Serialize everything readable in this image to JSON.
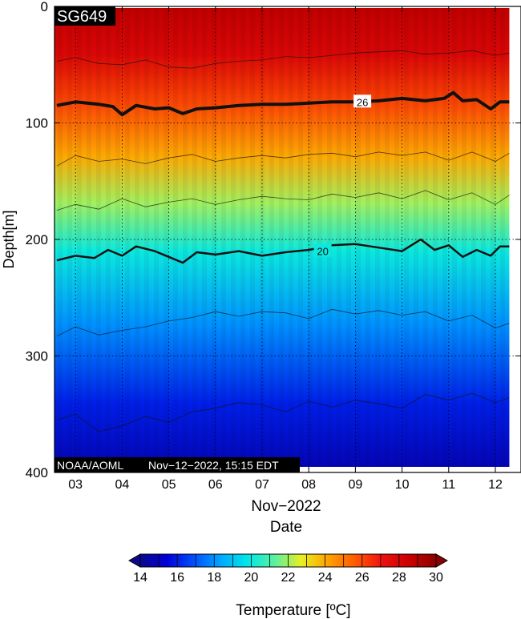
{
  "chart_data": {
    "type": "heatmap",
    "title_badge": "SG649",
    "footer_left": "NOAA/AOML",
    "footer_right": "Nov−12−2022, 15:15 EDT",
    "xlabel_month": "Nov−2022",
    "xlabel": "Date",
    "ylabel": "Depth[m]",
    "x_ticks": [
      "03",
      "04",
      "05",
      "06",
      "07",
      "08",
      "09",
      "10",
      "11",
      "12"
    ],
    "y_ticks": [
      0,
      100,
      200,
      300,
      400
    ],
    "xlim_days": [
      2.55,
      12.55
    ],
    "data_xlim_days": [
      2.55,
      12.3
    ],
    "ylim": [
      0,
      400
    ],
    "y_reversed": true,
    "grid": true,
    "colorbar": {
      "label": "Temperature [ºC]",
      "range": [
        14,
        30
      ],
      "ticks": [
        14,
        16,
        18,
        20,
        22,
        24,
        26,
        28,
        30
      ],
      "colors": [
        "#0a0a8a",
        "#0000d8",
        "#0050ff",
        "#00a8ff",
        "#00e8e8",
        "#5af0a0",
        "#e8f020",
        "#ffa000",
        "#ff5a00",
        "#ee1010",
        "#cc0000",
        "#8a0000"
      ]
    },
    "temperature_profile": [
      {
        "depth": 0,
        "temp": 28.8
      },
      {
        "depth": 40,
        "temp": 28.0
      },
      {
        "depth": 84,
        "temp": 26.0
      },
      {
        "depth": 130,
        "temp": 24.0
      },
      {
        "depth": 170,
        "temp": 22.0
      },
      {
        "depth": 212,
        "temp": 20.0
      },
      {
        "depth": 275,
        "temp": 18.0
      },
      {
        "depth": 345,
        "temp": 16.0
      },
      {
        "depth": 400,
        "temp": 14.8
      }
    ],
    "isotherms": [
      {
        "temp": 28,
        "label": "",
        "base_depth": 45,
        "bold": false,
        "points": [
          [
            2.6,
            47
          ],
          [
            3.0,
            44
          ],
          [
            3.5,
            49
          ],
          [
            4.0,
            50
          ],
          [
            4.5,
            46
          ],
          [
            5.0,
            52
          ],
          [
            5.5,
            53
          ],
          [
            6.0,
            49
          ],
          [
            6.5,
            47
          ],
          [
            7.0,
            46
          ],
          [
            7.5,
            43
          ],
          [
            8.0,
            44
          ],
          [
            8.5,
            42
          ],
          [
            9.0,
            40
          ],
          [
            9.5,
            39
          ],
          [
            10.0,
            38
          ],
          [
            10.5,
            41
          ],
          [
            11.0,
            40
          ],
          [
            11.5,
            38
          ],
          [
            12.0,
            42
          ],
          [
            12.3,
            40
          ]
        ]
      },
      {
        "temp": 26,
        "label": "26",
        "base_depth": 84,
        "bold": true,
        "points": [
          [
            2.6,
            85
          ],
          [
            3.0,
            82
          ],
          [
            3.5,
            84
          ],
          [
            3.8,
            86
          ],
          [
            4.0,
            93
          ],
          [
            4.3,
            85
          ],
          [
            4.7,
            88
          ],
          [
            5.0,
            87
          ],
          [
            5.3,
            92
          ],
          [
            5.6,
            88
          ],
          [
            6.0,
            87
          ],
          [
            6.5,
            85
          ],
          [
            7.0,
            84
          ],
          [
            7.5,
            84
          ],
          [
            8.0,
            83
          ],
          [
            8.5,
            82
          ],
          [
            9.0,
            82
          ],
          [
            9.5,
            81
          ],
          [
            10.0,
            79
          ],
          [
            10.5,
            81
          ],
          [
            10.9,
            79
          ],
          [
            11.1,
            74
          ],
          [
            11.3,
            81
          ],
          [
            11.6,
            80
          ],
          [
            11.9,
            88
          ],
          [
            12.1,
            82
          ],
          [
            12.3,
            82
          ]
        ]
      },
      {
        "temp": 24,
        "label": "",
        "base_depth": 130,
        "bold": false,
        "points": [
          [
            2.6,
            137
          ],
          [
            3.0,
            128
          ],
          [
            3.5,
            133
          ],
          [
            4.0,
            131
          ],
          [
            4.5,
            135
          ],
          [
            5.0,
            130
          ],
          [
            5.5,
            127
          ],
          [
            6.0,
            133
          ],
          [
            6.5,
            130
          ],
          [
            7.0,
            128
          ],
          [
            7.5,
            130
          ],
          [
            8.0,
            127
          ],
          [
            8.5,
            126
          ],
          [
            9.0,
            129
          ],
          [
            9.5,
            125
          ],
          [
            10.0,
            128
          ],
          [
            10.5,
            125
          ],
          [
            11.0,
            132
          ],
          [
            11.5,
            125
          ],
          [
            12.0,
            133
          ],
          [
            12.3,
            126
          ]
        ]
      },
      {
        "temp": 22,
        "label": "",
        "base_depth": 170,
        "bold": false,
        "points": [
          [
            2.6,
            175
          ],
          [
            3.0,
            170
          ],
          [
            3.5,
            174
          ],
          [
            4.0,
            165
          ],
          [
            4.5,
            172
          ],
          [
            5.0,
            168
          ],
          [
            5.5,
            165
          ],
          [
            6.0,
            170
          ],
          [
            6.5,
            166
          ],
          [
            7.0,
            163
          ],
          [
            7.5,
            165
          ],
          [
            8.0,
            166
          ],
          [
            8.5,
            161
          ],
          [
            9.0,
            164
          ],
          [
            9.5,
            160
          ],
          [
            10.0,
            165
          ],
          [
            10.5,
            158
          ],
          [
            11.0,
            166
          ],
          [
            11.5,
            160
          ],
          [
            12.0,
            170
          ],
          [
            12.3,
            162
          ]
        ]
      },
      {
        "temp": 20,
        "label": "20",
        "base_depth": 212,
        "bold": true,
        "points": [
          [
            2.6,
            218
          ],
          [
            3.0,
            214
          ],
          [
            3.4,
            216
          ],
          [
            3.7,
            209
          ],
          [
            4.0,
            214
          ],
          [
            4.3,
            206
          ],
          [
            4.7,
            210
          ],
          [
            5.0,
            215
          ],
          [
            5.3,
            220
          ],
          [
            5.6,
            211
          ],
          [
            6.0,
            213
          ],
          [
            6.5,
            210
          ],
          [
            7.0,
            214
          ],
          [
            7.5,
            211
          ],
          [
            8.0,
            209
          ],
          [
            8.5,
            205
          ],
          [
            9.0,
            204
          ],
          [
            9.5,
            207
          ],
          [
            10.0,
            210
          ],
          [
            10.4,
            200
          ],
          [
            10.7,
            209
          ],
          [
            11.0,
            205
          ],
          [
            11.3,
            215
          ],
          [
            11.6,
            209
          ],
          [
            11.9,
            214
          ],
          [
            12.1,
            206
          ],
          [
            12.3,
            206
          ]
        ]
      },
      {
        "temp": 18,
        "label": "",
        "base_depth": 275,
        "bold": false,
        "points": [
          [
            2.6,
            283
          ],
          [
            3.0,
            275
          ],
          [
            3.5,
            282
          ],
          [
            4.0,
            278
          ],
          [
            4.5,
            275
          ],
          [
            5.0,
            270
          ],
          [
            5.5,
            267
          ],
          [
            6.0,
            262
          ],
          [
            6.5,
            266
          ],
          [
            7.0,
            262
          ],
          [
            7.5,
            263
          ],
          [
            8.0,
            268
          ],
          [
            8.5,
            260
          ],
          [
            9.0,
            264
          ],
          [
            9.5,
            261
          ],
          [
            10.0,
            265
          ],
          [
            10.5,
            262
          ],
          [
            11.0,
            270
          ],
          [
            11.5,
            265
          ],
          [
            12.0,
            276
          ],
          [
            12.3,
            272
          ]
        ]
      },
      {
        "temp": 16,
        "label": "",
        "base_depth": 345,
        "bold": false,
        "points": [
          [
            2.6,
            355
          ],
          [
            3.0,
            350
          ],
          [
            3.5,
            365
          ],
          [
            4.0,
            360
          ],
          [
            4.5,
            352
          ],
          [
            5.0,
            357
          ],
          [
            5.5,
            348
          ],
          [
            6.0,
            345
          ],
          [
            6.5,
            340
          ],
          [
            7.0,
            342
          ],
          [
            7.5,
            348
          ],
          [
            8.0,
            339
          ],
          [
            8.5,
            344
          ],
          [
            9.0,
            338
          ],
          [
            9.5,
            341
          ],
          [
            10.0,
            345
          ],
          [
            10.5,
            333
          ],
          [
            11.0,
            338
          ],
          [
            11.5,
            332
          ],
          [
            12.0,
            340
          ],
          [
            12.3,
            336
          ]
        ]
      }
    ]
  }
}
